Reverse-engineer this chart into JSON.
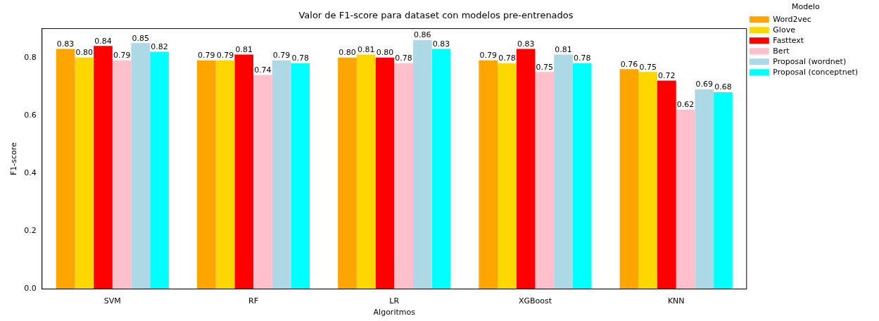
{
  "chart_data": {
    "type": "bar",
    "title": "Valor de F1-score para dataset con modelos pre-entrenados",
    "xlabel": "Algoritmos",
    "ylabel": "F1-score",
    "legend_title": "Modelo",
    "legend": "top right",
    "grid": false,
    "categories": [
      "SVM",
      "RF",
      "LR",
      "XGBoost",
      "KNN"
    ],
    "ylim": [
      0,
      0.9
    ],
    "yticks": [
      {
        "value": 0,
        "label": "0.0"
      },
      {
        "value": 0.2,
        "label": "0.2"
      },
      {
        "value": 0.4,
        "label": "0.4"
      },
      {
        "value": 0.6,
        "label": "0.6"
      },
      {
        "value": 0.8,
        "label": "0.8"
      }
    ],
    "series": [
      {
        "name": "Word2vec",
        "color": "#ffa500",
        "values": [
          0.83,
          0.79,
          0.8,
          0.79,
          0.76
        ],
        "value_labels": [
          "0.83",
          "0.79",
          "0.80",
          "0.79",
          "0.76"
        ]
      },
      {
        "name": "Glove",
        "color": "#ffd700",
        "values": [
          0.8,
          0.79,
          0.81,
          0.78,
          0.75
        ],
        "value_labels": [
          "0.80",
          "0.79",
          "0.81",
          "0.78",
          "0.75"
        ]
      },
      {
        "name": "Fasttext",
        "color": "#ff0000",
        "values": [
          0.84,
          0.81,
          0.8,
          0.83,
          0.72
        ],
        "value_labels": [
          "0.84",
          "0.81",
          "0.80",
          "0.83",
          "0.72"
        ]
      },
      {
        "name": "Bert",
        "color": "#ffc0cb",
        "values": [
          0.79,
          0.74,
          0.78,
          0.75,
          0.62
        ],
        "value_labels": [
          "0.79",
          "0.74",
          "0.78",
          "0.75",
          "0.62"
        ]
      },
      {
        "name": "Proposal (wordnet)",
        "color": "#add8e6",
        "values": [
          0.85,
          0.79,
          0.86,
          0.81,
          0.69
        ],
        "value_labels": [
          "0.85",
          "0.79",
          "0.86",
          "0.81",
          "0.69"
        ]
      },
      {
        "name": "Proposal (conceptnet)",
        "color": "#00ffff",
        "values": [
          0.82,
          0.78,
          0.83,
          0.78,
          0.68
        ],
        "value_labels": [
          "0.82",
          "0.78",
          "0.83",
          "0.78",
          "0.68"
        ]
      }
    ]
  }
}
